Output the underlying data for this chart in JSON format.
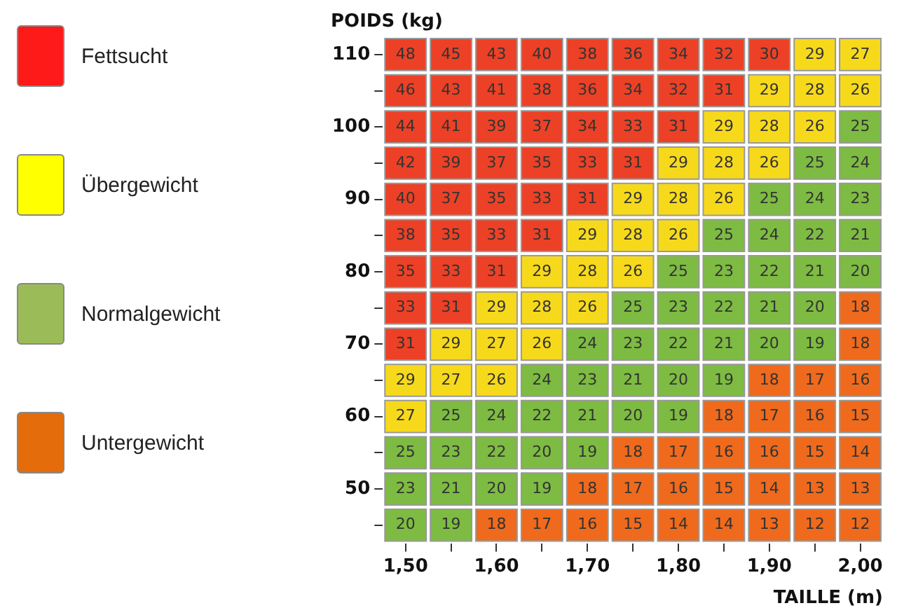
{
  "chart_data": {
    "type": "heatmap",
    "xlabel": "TAILLE (m)",
    "ylabel": "POIDS (kg)",
    "data_labels": true,
    "annotations": [
      "Fettsucht",
      "Übergewicht",
      "Normalgewicht",
      "Untergewicht"
    ],
    "categories": [
      "1,50",
      null,
      "1,60",
      null,
      "1,70",
      null,
      "1,80",
      null,
      "1,90",
      null,
      "2,00"
    ],
    "y_categories": [
      "110",
      null,
      "100",
      null,
      "90",
      null,
      "80",
      null,
      "70",
      null,
      "60",
      null,
      "50",
      null
    ],
    "cells": [
      [
        48,
        45,
        43,
        40,
        38,
        36,
        34,
        32,
        30,
        29,
        27
      ],
      [
        46,
        43,
        41,
        38,
        36,
        34,
        32,
        31,
        29,
        28,
        26
      ],
      [
        44,
        41,
        39,
        37,
        34,
        33,
        31,
        29,
        28,
        26,
        25
      ],
      [
        42,
        39,
        37,
        35,
        33,
        31,
        29,
        28,
        26,
        25,
        24
      ],
      [
        40,
        37,
        35,
        33,
        31,
        29,
        28,
        26,
        25,
        24,
        23
      ],
      [
        38,
        35,
        33,
        31,
        29,
        28,
        26,
        25,
        24,
        22,
        21
      ],
      [
        35,
        33,
        31,
        29,
        28,
        26,
        25,
        23,
        22,
        21,
        20
      ],
      [
        33,
        31,
        29,
        28,
        26,
        25,
        23,
        22,
        21,
        20,
        18
      ],
      [
        31,
        29,
        27,
        26,
        24,
        23,
        22,
        21,
        20,
        19,
        18
      ],
      [
        29,
        27,
        26,
        24,
        23,
        21,
        20,
        19,
        18,
        17,
        16
      ],
      [
        27,
        25,
        24,
        22,
        21,
        20,
        19,
        18,
        17,
        16,
        15
      ],
      [
        25,
        23,
        22,
        20,
        19,
        18,
        17,
        16,
        16,
        15,
        14
      ],
      [
        23,
        21,
        20,
        19,
        18,
        17,
        16,
        15,
        14,
        13,
        13
      ],
      [
        20,
        19,
        18,
        17,
        16,
        15,
        14,
        14,
        13,
        12,
        12
      ]
    ],
    "colors": [
      [
        "#ec4126",
        "#ec4126",
        "#ec4126",
        "#ec4126",
        "#ec4126",
        "#ec4126",
        "#ec4126",
        "#ec4126",
        "#ec4126",
        "#f7d91c",
        "#f7d91c"
      ],
      [
        "#ec4126",
        "#ec4126",
        "#ec4126",
        "#ec4126",
        "#ec4126",
        "#ec4126",
        "#ec4126",
        "#ec4126",
        "#f7d91c",
        "#f7d91c",
        "#f7d91c"
      ],
      [
        "#ec4126",
        "#ec4126",
        "#ec4126",
        "#ec4126",
        "#ec4126",
        "#ec4126",
        "#ec4126",
        "#f7d91c",
        "#f7d91c",
        "#f7d91c",
        "#7dbb42"
      ],
      [
        "#ec4126",
        "#ec4126",
        "#ec4126",
        "#ec4126",
        "#ec4126",
        "#ec4126",
        "#f7d91c",
        "#f7d91c",
        "#f7d91c",
        "#7dbb42",
        "#7dbb42"
      ],
      [
        "#ec4126",
        "#ec4126",
        "#ec4126",
        "#ec4126",
        "#ec4126",
        "#f7d91c",
        "#f7d91c",
        "#f7d91c",
        "#7dbb42",
        "#7dbb42",
        "#7dbb42"
      ],
      [
        "#ec4126",
        "#ec4126",
        "#ec4126",
        "#ec4126",
        "#f7d91c",
        "#f7d91c",
        "#f7d91c",
        "#7dbb42",
        "#7dbb42",
        "#7dbb42",
        "#7dbb42"
      ],
      [
        "#ec4126",
        "#ec4126",
        "#ec4126",
        "#f7d91c",
        "#f7d91c",
        "#f7d91c",
        "#7dbb42",
        "#7dbb42",
        "#7dbb42",
        "#7dbb42",
        "#7dbb42"
      ],
      [
        "#ec4126",
        "#ec4126",
        "#f7d91c",
        "#f7d91c",
        "#f7d91c",
        "#7dbb42",
        "#7dbb42",
        "#7dbb42",
        "#7dbb42",
        "#7dbb42",
        "#ef6a1c"
      ],
      [
        "#ec4126",
        "#f7d91c",
        "#f7d91c",
        "#f7d91c",
        "#7dbb42",
        "#7dbb42",
        "#7dbb42",
        "#7dbb42",
        "#7dbb42",
        "#7dbb42",
        "#ef6a1c"
      ],
      [
        "#f7d91c",
        "#f7d91c",
        "#f7d91c",
        "#7dbb42",
        "#7dbb42",
        "#7dbb42",
        "#7dbb42",
        "#7dbb42",
        "#ef6a1c",
        "#ef6a1c",
        "#ef6a1c"
      ],
      [
        "#f7d91c",
        "#7dbb42",
        "#7dbb42",
        "#7dbb42",
        "#7dbb42",
        "#7dbb42",
        "#7dbb42",
        "#ef6a1c",
        "#ef6a1c",
        "#ef6a1c",
        "#ef6a1c"
      ],
      [
        "#7dbb42",
        "#7dbb42",
        "#7dbb42",
        "#7dbb42",
        "#7dbb42",
        "#ef6a1c",
        "#ef6a1c",
        "#ef6a1c",
        "#ef6a1c",
        "#ef6a1c",
        "#ef6a1c"
      ],
      [
        "#7dbb42",
        "#7dbb42",
        "#7dbb42",
        "#7dbb42",
        "#ef6a1c",
        "#ef6a1c",
        "#ef6a1c",
        "#ef6a1c",
        "#ef6a1c",
        "#ef6a1c",
        "#ef6a1c"
      ],
      [
        "#7dbb42",
        "#7dbb42",
        "#ef6a1c",
        "#ef6a1c",
        "#ef6a1c",
        "#ef6a1c",
        "#ef6a1c",
        "#ef6a1c",
        "#ef6a1c",
        "#ef6a1c",
        "#ef6a1c"
      ]
    ]
  }
}
